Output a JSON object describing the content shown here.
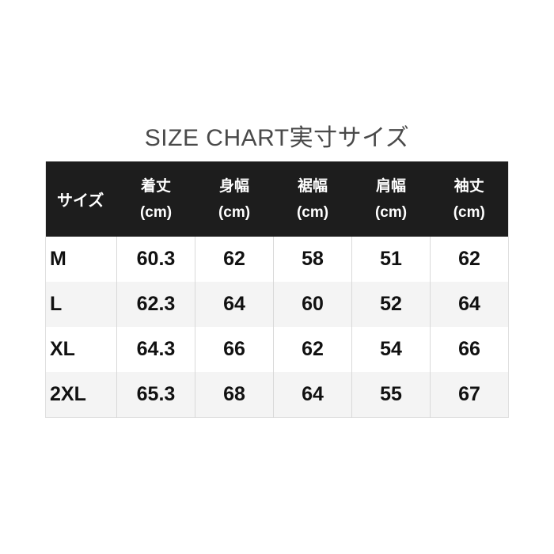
{
  "title": "SIZE CHART実寸サイズ",
  "colors": {
    "header_background": "#1d1d1d",
    "header_text": "#ffffff",
    "row_background": "#ffffff",
    "row_alt_background": "#f4f4f4",
    "border": "#d9d9d9",
    "title_text": "#4a4a4a",
    "data_text": "#111111"
  },
  "table": {
    "columns": [
      {
        "label": "サイズ",
        "unit": ""
      },
      {
        "label": "着丈",
        "unit": "(cm)"
      },
      {
        "label": "身幅",
        "unit": "(cm)"
      },
      {
        "label": "裾幅",
        "unit": "(cm)"
      },
      {
        "label": "肩幅",
        "unit": "(cm)"
      },
      {
        "label": "袖丈",
        "unit": "(cm)"
      }
    ],
    "rows": [
      {
        "size": "M",
        "values": [
          "60.3",
          "62",
          "58",
          "51",
          "62"
        ]
      },
      {
        "size": "L",
        "values": [
          "62.3",
          "64",
          "60",
          "52",
          "64"
        ]
      },
      {
        "size": "XL",
        "values": [
          "64.3",
          "66",
          "62",
          "54",
          "66"
        ]
      },
      {
        "size": "2XL",
        "values": [
          "65.3",
          "68",
          "64",
          "55",
          "67"
        ]
      }
    ]
  },
  "chart_data": {
    "type": "table",
    "title": "SIZE CHART実寸サイズ",
    "columns": [
      "サイズ",
      "着丈 (cm)",
      "身幅 (cm)",
      "裾幅 (cm)",
      "肩幅 (cm)",
      "袖丈 (cm)"
    ],
    "rows": [
      [
        "M",
        60.3,
        62,
        58,
        51,
        62
      ],
      [
        "L",
        62.3,
        64,
        60,
        52,
        64
      ],
      [
        "XL",
        64.3,
        66,
        62,
        54,
        66
      ],
      [
        "2XL",
        65.3,
        68,
        64,
        55,
        67
      ]
    ]
  }
}
